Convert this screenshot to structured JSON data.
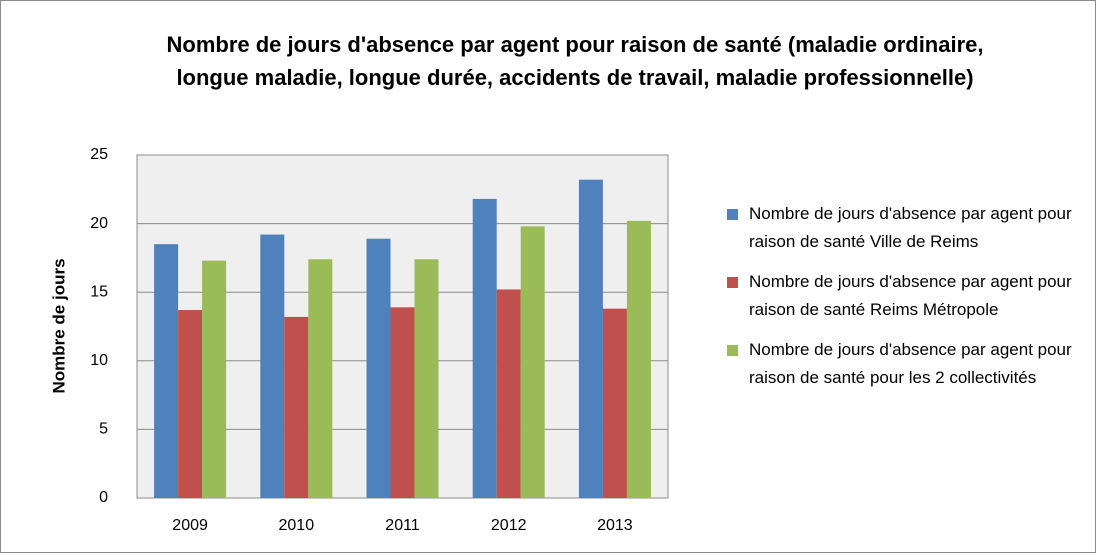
{
  "chart_data": {
    "type": "bar",
    "title": "Nombre de jours d'absence par agent pour raison de santé (maladie ordinaire, longue maladie, longue durée, accidents de travail, maladie professionnelle)",
    "y_label": "Nombre de jours",
    "categories": [
      "2009",
      "2010",
      "2011",
      "2012",
      "2013"
    ],
    "series": [
      {
        "name": "Nombre de jours d'absence par agent pour raison de santé Ville de Reims",
        "color": "#4f81bd",
        "values": [
          18.5,
          19.2,
          18.9,
          21.8,
          23.2
        ]
      },
      {
        "name": "Nombre de jours d'absence par agent pour raison de santé Reims Métropole",
        "color": "#c0504d",
        "values": [
          13.7,
          13.2,
          13.9,
          15.2,
          13.8
        ]
      },
      {
        "name": "Nombre de jours d'absence par agent pour raison de santé pour les 2 collectivités",
        "color": "#9bbb59",
        "values": [
          17.3,
          17.4,
          17.4,
          19.8,
          20.2
        ]
      }
    ],
    "ylim": [
      0,
      25
    ],
    "yticks": [
      0,
      5,
      10,
      15,
      20,
      25
    ],
    "grid": true,
    "legend": "right"
  }
}
